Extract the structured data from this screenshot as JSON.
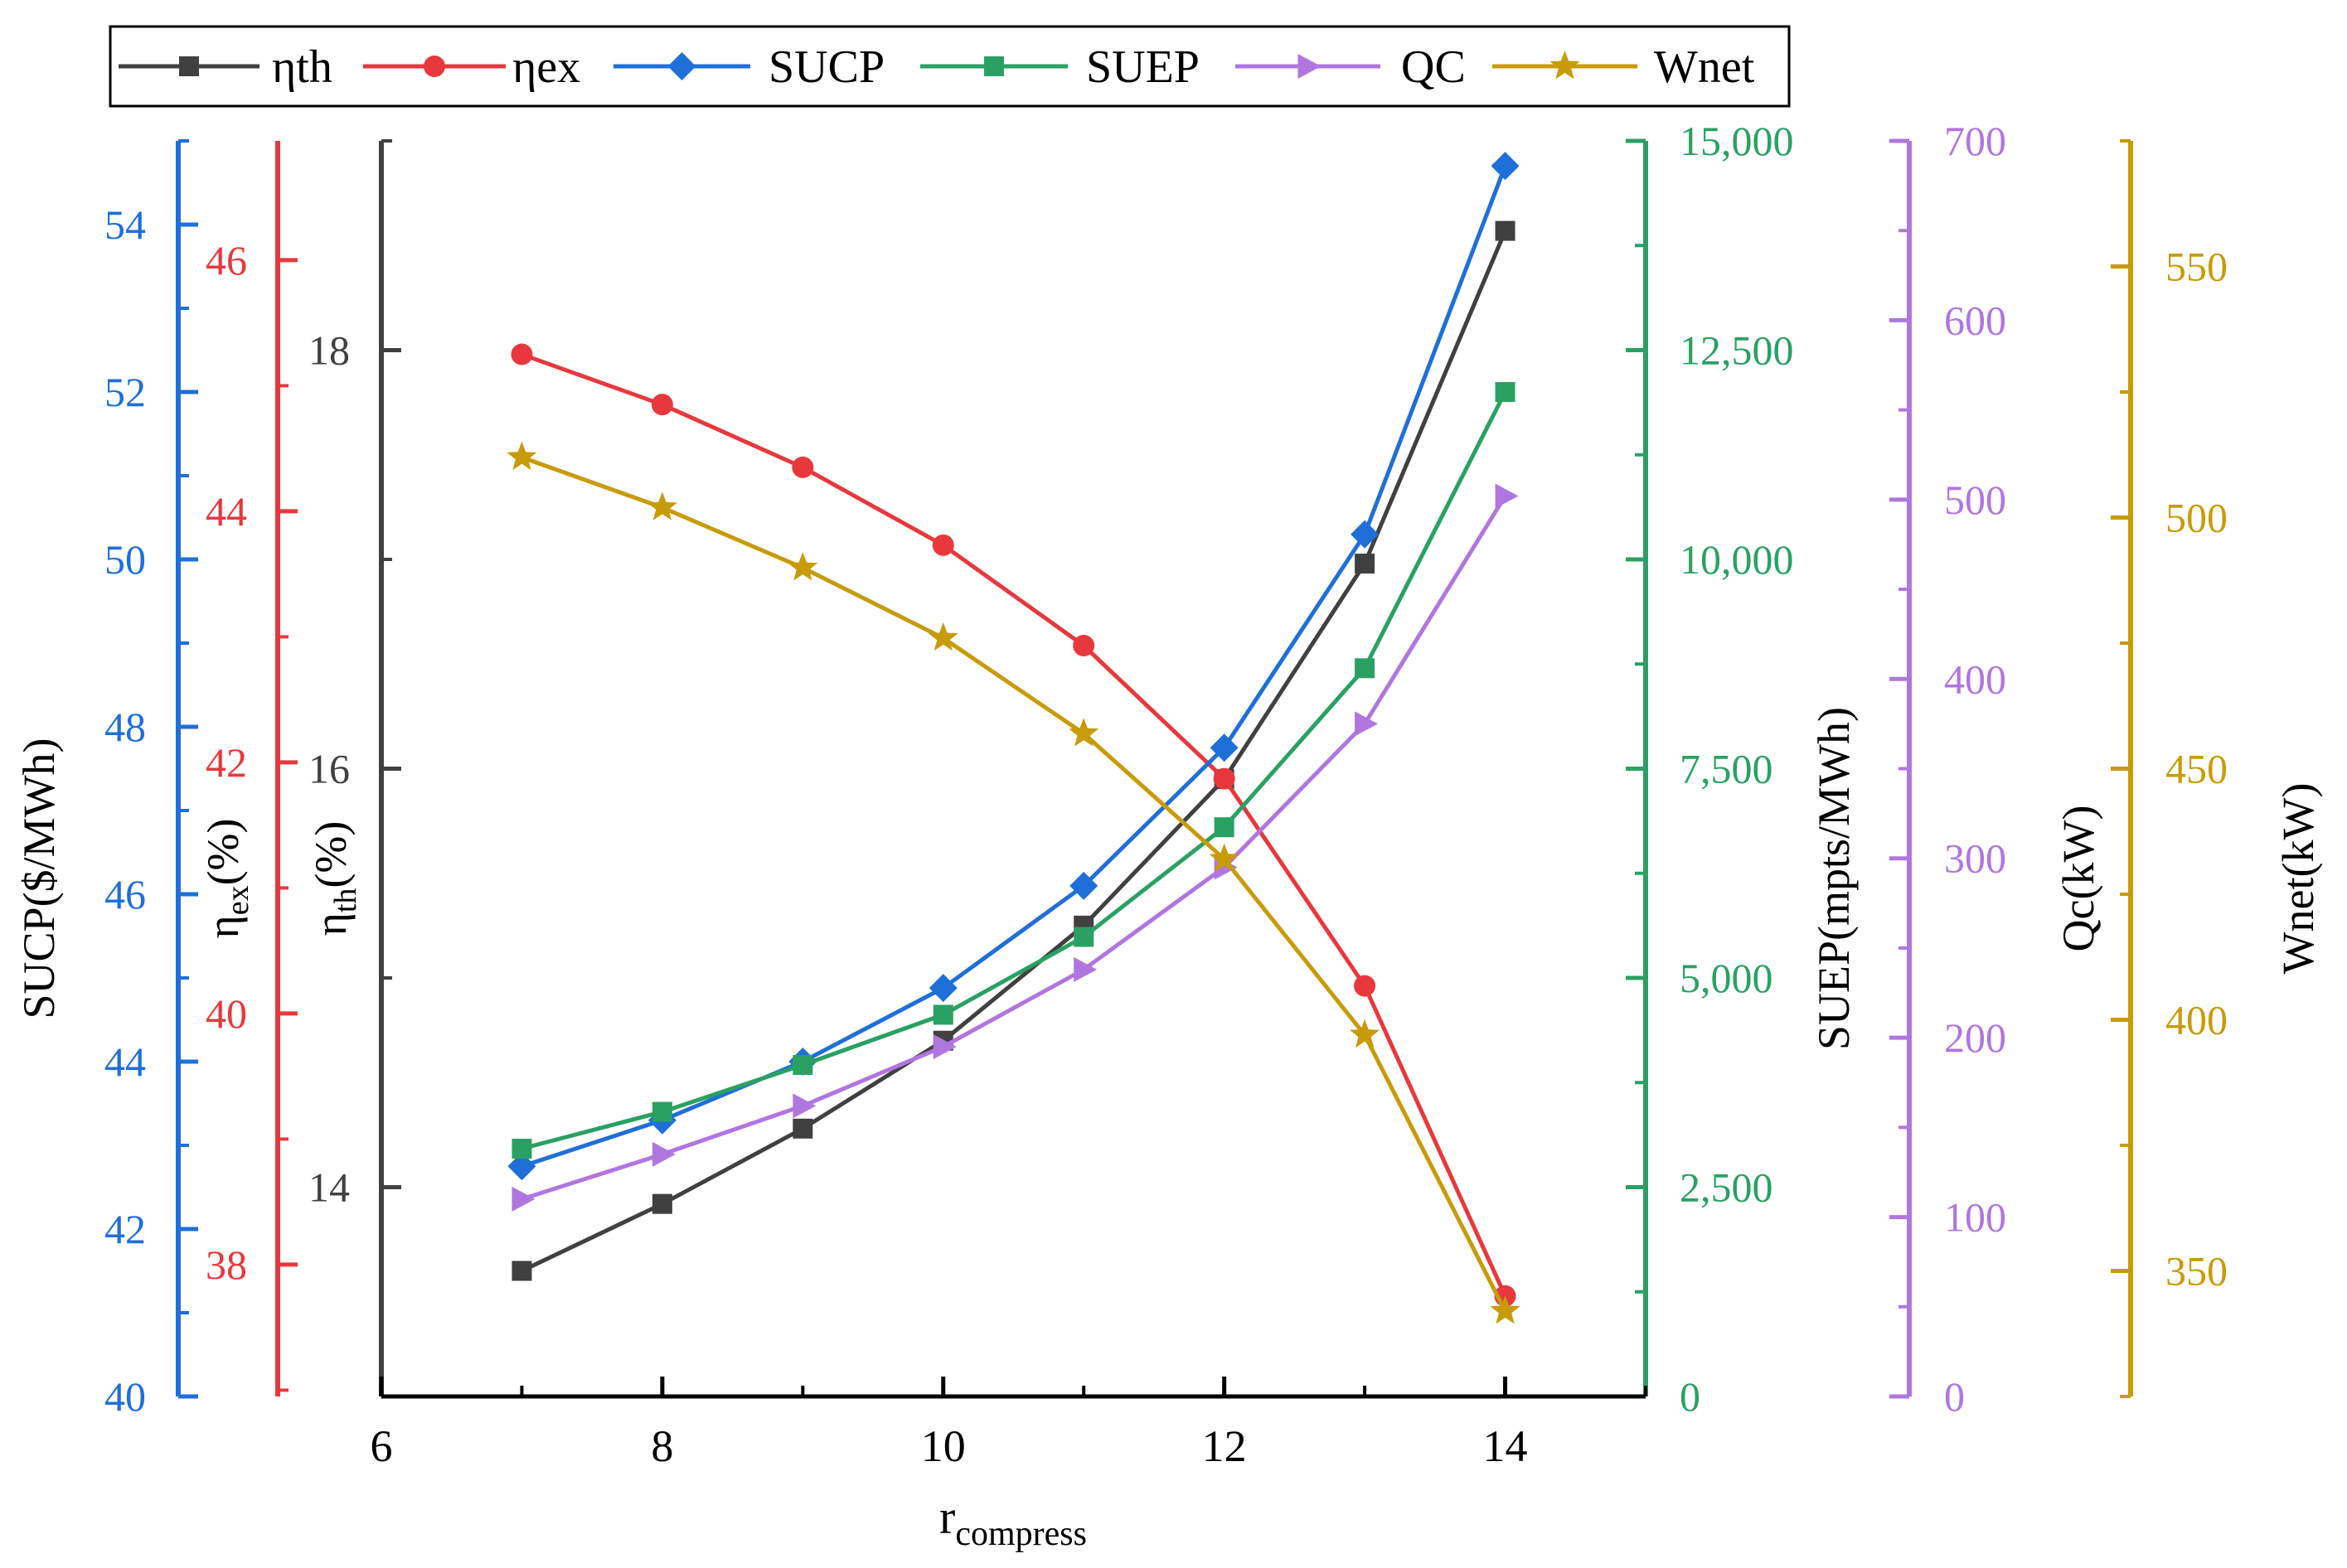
{
  "chart_data": {
    "type": "line",
    "title": "",
    "xlabel": "r",
    "xlabel_sub": "compress",
    "x": [
      7,
      8,
      9,
      10,
      11,
      12,
      13,
      14
    ],
    "xlim": [
      6,
      15
    ],
    "xticks": [
      6,
      8,
      10,
      12,
      14
    ],
    "legend": {
      "position": "top"
    },
    "series": [
      {
        "id": "eta_th",
        "name": "ηth",
        "color": "#404040",
        "marker": "square",
        "axis": "eta_th",
        "values": [
          13.6,
          13.92,
          14.28,
          14.7,
          15.25,
          15.95,
          16.98,
          18.57
        ]
      },
      {
        "id": "eta_ex",
        "name": "ηex",
        "color": "#e8383d",
        "marker": "circle",
        "axis": "eta_ex",
        "values": [
          45.25,
          44.85,
          44.35,
          43.73,
          42.93,
          41.87,
          40.22,
          37.75
        ]
      },
      {
        "id": "sucp",
        "name": "SUCP",
        "color": "#1f6fd8",
        "marker": "diamond",
        "axis": "sucp",
        "values": [
          42.75,
          43.3,
          44.0,
          44.88,
          46.1,
          47.75,
          50.3,
          54.7
        ]
      },
      {
        "id": "suep",
        "name": "SUEP",
        "color": "#2aa163",
        "marker": "square",
        "axis": "suep",
        "values": [
          2960,
          3400,
          3960,
          4560,
          5490,
          6800,
          8700,
          12000
        ]
      },
      {
        "id": "qc",
        "name": "QC",
        "color": "#b076e0",
        "marker": "triangle-right",
        "axis": "qc",
        "values": [
          110,
          135,
          162,
          195,
          238,
          295,
          375,
          502
        ]
      },
      {
        "id": "wnet",
        "name": "Wnet",
        "color": "#c89b0a",
        "marker": "star",
        "axis": "wnet",
        "values": [
          512,
          502,
          490,
          476,
          457,
          432,
          397,
          342
        ]
      }
    ],
    "axes": [
      {
        "id": "sucp",
        "label": "SUCP($/MWh)",
        "color": "#1f6fd8",
        "label_color": "#000000",
        "side": "left",
        "range": [
          40,
          55
        ],
        "ticks": [
          40,
          42,
          44,
          46,
          48,
          50,
          52,
          54
        ],
        "minor_step": 1,
        "tick_labels": [
          "40",
          "42",
          "44",
          "46",
          "48",
          "50",
          "52",
          "54"
        ]
      },
      {
        "id": "eta_ex",
        "label_main": "η",
        "label_sub": "ex",
        "label_tail": "(%)",
        "color": "#e8383d",
        "label_color": "#000000",
        "side": "left",
        "range": [
          36.95,
          46.95
        ],
        "ticks": [
          38,
          40,
          42,
          44,
          46
        ],
        "minor_step": 1,
        "tick_labels": [
          "38",
          "40",
          "42",
          "44",
          "46"
        ]
      },
      {
        "id": "eta_th",
        "label_main": "η",
        "label_sub": "th",
        "label_tail": "(%)",
        "color": "#404040",
        "label_color": "#000000",
        "side": "left",
        "range": [
          13,
          19
        ],
        "ticks": [
          14,
          16,
          18
        ],
        "minor_step": 1,
        "tick_labels": [
          "14",
          "16",
          "18"
        ]
      },
      {
        "id": "suep",
        "label": "SUEP(mpts/MWh)",
        "color": "#2aa163",
        "label_color": "#000000",
        "side": "right",
        "range": [
          0,
          15000
        ],
        "ticks": [
          0,
          2500,
          5000,
          7500,
          10000,
          12500,
          15000
        ],
        "minor_step": 1250,
        "tick_labels": [
          "0",
          "2,500",
          "5,000",
          "7,500",
          "10,000",
          "12,500",
          "15,000"
        ]
      },
      {
        "id": "qc",
        "label": "Qc(kW)",
        "color": "#b076e0",
        "label_color": "#000000",
        "side": "right",
        "range": [
          0,
          700
        ],
        "ticks": [
          0,
          100,
          200,
          300,
          400,
          500,
          600,
          700
        ],
        "minor_step": 50,
        "tick_labels": [
          "0",
          "100",
          "200",
          "300",
          "400",
          "500",
          "600",
          "700"
        ]
      },
      {
        "id": "wnet",
        "label": "Wnet(kW)",
        "color": "#c89b0a",
        "label_color": "#000000",
        "side": "right",
        "range": [
          325,
          575
        ],
        "ticks": [
          350,
          400,
          450,
          500,
          550
        ],
        "minor_step": 25,
        "tick_labels": [
          "350",
          "400",
          "450",
          "500",
          "550"
        ]
      }
    ]
  }
}
